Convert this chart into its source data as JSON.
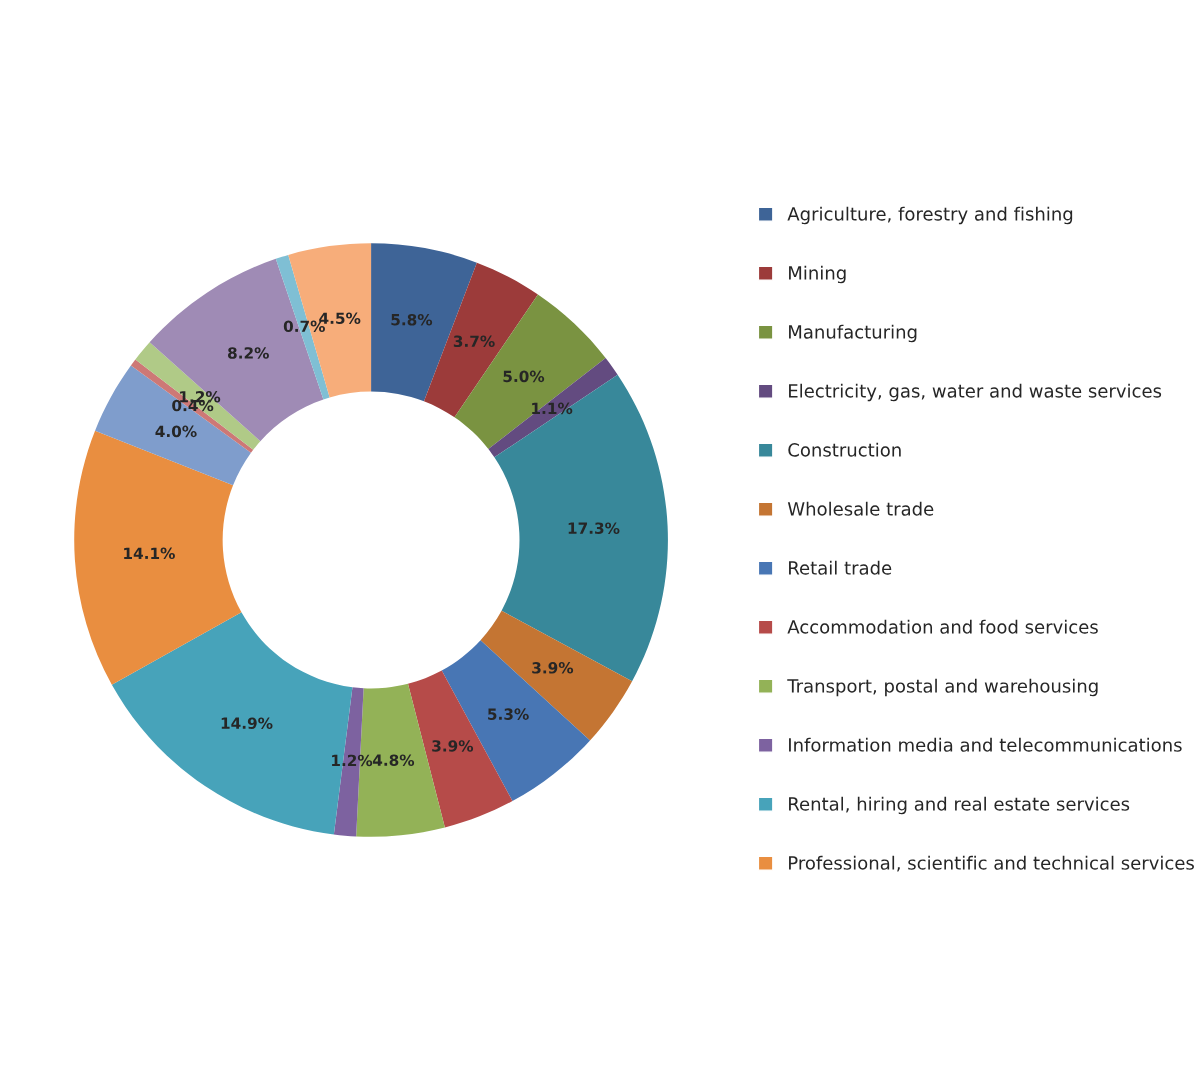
{
  "chart_data": {
    "type": "donut",
    "categories": [
      "Agriculture, forestry and fishing",
      "Mining",
      "Manufacturing",
      "Electricity, gas, water and waste services",
      "Construction",
      "Wholesale trade",
      "Retail trade",
      "Accommodation and food services",
      "Transport, postal and warehousing",
      "Information media and telecommunications",
      "Rental, hiring and real estate services",
      "Professional, scientific and technical services",
      null,
      null,
      null,
      null,
      null,
      null
    ],
    "values": [
      5.8,
      3.7,
      5.0,
      1.1,
      17.3,
      3.9,
      5.3,
      3.9,
      4.8,
      1.2,
      14.9,
      14.1,
      4.0,
      0.4,
      1.2,
      8.2,
      0.7,
      4.5
    ],
    "value_labels": [
      "5.8%",
      "3.7%",
      "5.0%",
      "1.1%",
      "17.3%",
      "3.9%",
      "5.3%",
      "3.9%",
      "4.8%",
      "1.2%",
      "14.9%",
      "14.1%",
      "4.0%",
      "0.4%",
      "1.2%",
      "8.2%",
      "0.7%",
      "4.5%"
    ],
    "colors": [
      "#3e6497",
      "#9c3b3a",
      "#7a9341",
      "#634b80",
      "#38889a",
      "#c47533",
      "#4876b4",
      "#b64b49",
      "#93b257",
      "#7d62a0",
      "#47a3ba",
      "#e98e40",
      "#7f9dcc",
      "#cd7876",
      "#b0ca87",
      "#9f8bb5",
      "#7fbfd4",
      "#f7ad7a"
    ],
    "legend": "right"
  }
}
